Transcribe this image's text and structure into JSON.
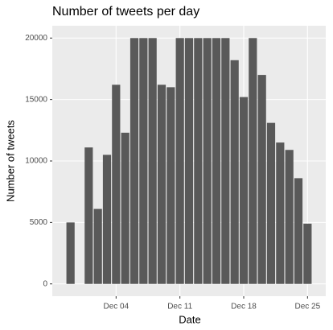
{
  "chart_data": {
    "type": "bar",
    "title": "Number of tweets per day",
    "x_label": "Date",
    "y_label": "Number of tweets",
    "x": [
      "Nov 29",
      "Dec 01",
      "Dec 02",
      "Dec 03",
      "Dec 04",
      "Dec 05",
      "Dec 06",
      "Dec 07",
      "Dec 08",
      "Dec 09",
      "Dec 10",
      "Dec 11",
      "Dec 12",
      "Dec 13",
      "Dec 14",
      "Dec 15",
      "Dec 16",
      "Dec 17",
      "Dec 18",
      "Dec 19",
      "Dec 20",
      "Dec 21",
      "Dec 22",
      "Dec 23",
      "Dec 24",
      "Dec 25"
    ],
    "values": [
      5000,
      11100,
      6100,
      10500,
      16200,
      12300,
      20000,
      20000,
      20000,
      16200,
      16000,
      20000,
      20000,
      20000,
      20000,
      20000,
      20000,
      18200,
      15200,
      20000,
      17000,
      13100,
      11500,
      10900,
      8600,
      4900
    ],
    "color": "#595959",
    "xlim": [
      "Nov 27",
      "Dec 27"
    ],
    "xticks": [
      "Dec 04",
      "Dec 11",
      "Dec 18",
      "Dec 25"
    ],
    "ylim": [
      -1000,
      21000
    ],
    "yticks": [
      0,
      5000,
      10000,
      15000,
      20000
    ],
    "grid": true
  }
}
